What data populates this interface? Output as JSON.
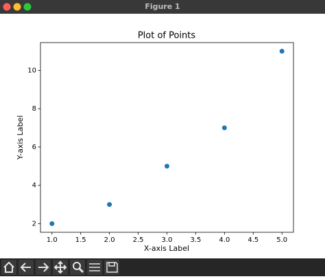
{
  "window": {
    "title": "Figure 1"
  },
  "chart_data": {
    "type": "scatter",
    "title": "Plot of Points",
    "x_label": "X-axis Label",
    "y_label": "Y-axis Label",
    "x": [
      1,
      2,
      3,
      4,
      5
    ],
    "values": [
      2,
      3,
      5,
      7,
      11
    ],
    "color": "#1f77b4",
    "xlim": [
      0.8,
      5.2
    ],
    "ylim": [
      1.55,
      11.45
    ],
    "xticks": [
      {
        "value": 1,
        "label": "1.0"
      },
      1.5,
      {
        "value": 2,
        "label": "2.0"
      },
      2.5,
      {
        "value": 3,
        "label": "3.0"
      },
      3.5,
      {
        "value": 4,
        "label": "4.0"
      },
      4.5,
      {
        "value": 5,
        "label": "5.0"
      }
    ],
    "yticks": [
      2,
      4,
      6,
      8,
      10
    ],
    "grid": false
  }
}
